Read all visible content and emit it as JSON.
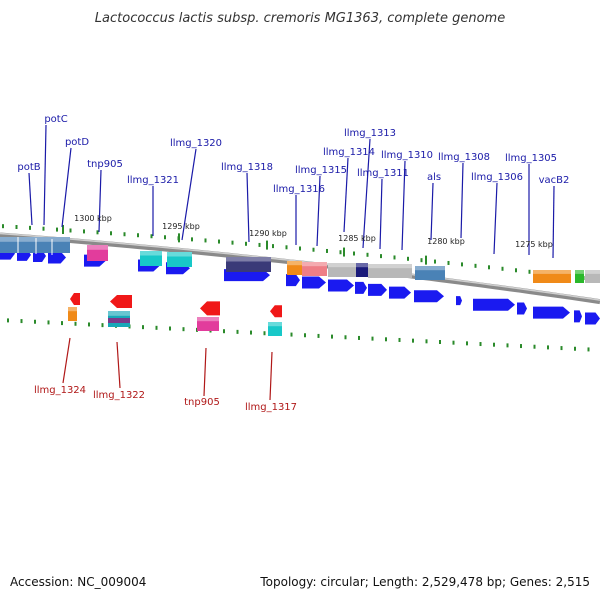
{
  "title": "Lactococcus lactis subsp. cremoris MG1363, complete genome",
  "accession": "Accession: NC_009004",
  "topology": "Topology: circular; Length: 2,529,478 bp; Genes: 2,515",
  "colors": {
    "backbone": "#8a8a8a",
    "tick": "#2a8a2a",
    "forward_label": "#1a1aa8",
    "reverse_label": "#b01818",
    "arrow": "#1a1af0"
  },
  "scale_labels": [
    "1300 kbp",
    "1295 kbp",
    "1290 kbp",
    "1285 kbp",
    "1280 kbp",
    "1275 kbp"
  ],
  "forward_labels": [
    "potB",
    "potC",
    "potD",
    "tnp905",
    "llmg_1321",
    "llmg_1320",
    "llmg_1318",
    "llmg_1316",
    "llmg_1315",
    "llmg_1314",
    "llmg_1313",
    "llmg_1311",
    "llmg_1310",
    "als",
    "llmg_1308",
    "llmg_1306",
    "llmg_1305",
    "vacB2"
  ],
  "reverse_labels": [
    "llmg_1324",
    "llmg_1322",
    "tnp905",
    "llmg_1317"
  ]
}
